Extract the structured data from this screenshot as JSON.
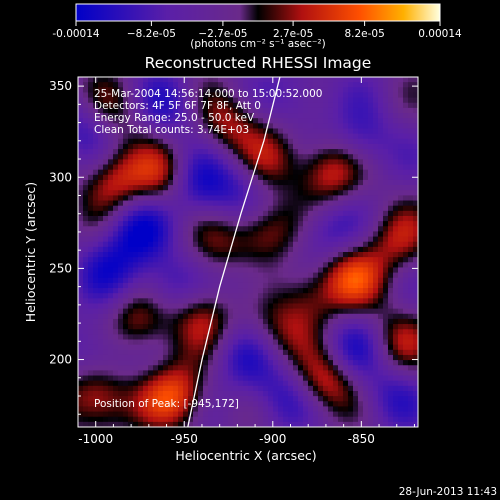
{
  "chart_data": {
    "type": "heatmap",
    "title": "Reconstructed RHESSI Image",
    "xlabel": "Heliocentric X (arcsec)",
    "ylabel": "Heliocentric Y (arcsec)",
    "xlim": [
      -1010,
      -818
    ],
    "ylim": [
      163,
      355
    ],
    "x_ticks": [
      -1000,
      -950,
      -900,
      -850
    ],
    "x_tick_labels": [
      "-1000",
      "-950",
      "-900",
      "-850"
    ],
    "y_ticks": [
      200,
      250,
      300,
      350
    ],
    "y_tick_labels": [
      "200",
      "250",
      "300",
      "350"
    ],
    "colorbar": {
      "range": [
        -0.00014,
        0.00014
      ],
      "ticks": [
        -0.00014,
        -8.2e-05,
        -2.7e-05,
        2.7e-05,
        8.2e-05,
        0.00014
      ],
      "tick_labels": [
        "-0.00014",
        "−8.2e-05",
        "−2.7e-05",
        "2.7e-05",
        "8.2e-05",
        "0.00014"
      ],
      "unit_label": "(photons cm⁻² s⁻¹ asec⁻²)",
      "colors": [
        "#0000c8",
        "#5a1fa8",
        "#6a2a8a",
        "#000000",
        "#b01010",
        "#ff5000",
        "#ffb000",
        "#ffffe0"
      ]
    },
    "info": [
      "25-Mar-2004 14:56:14.000 to 15:00:52.000",
      "Detectors: 4F 5F 6F 7F 8F, Att 0",
      "Energy Range: 25.0 - 50.0 keV",
      "Clean     Total counts: 3.74E+03"
    ],
    "peak_label": "Position of Peak: [-945,172]",
    "sources": [
      {
        "x": -955,
        "y": 180,
        "v": 1.0
      },
      {
        "x": -1000,
        "y": 178,
        "v": 0.95
      },
      {
        "x": -870,
        "y": 188,
        "v": 0.9
      },
      {
        "x": -990,
        "y": 298,
        "v": 0.75
      },
      {
        "x": -960,
        "y": 300,
        "v": 0.8
      },
      {
        "x": -868,
        "y": 303,
        "v": 0.85
      },
      {
        "x": -905,
        "y": 270,
        "v": 0.75
      },
      {
        "x": -855,
        "y": 245,
        "v": 0.8
      },
      {
        "x": -975,
        "y": 220,
        "v": 0.75
      },
      {
        "x": -940,
        "y": 225,
        "v": 0.65
      },
      {
        "x": -925,
        "y": 330,
        "v": 0.65
      },
      {
        "x": -990,
        "y": 338,
        "v": 0.55
      },
      {
        "x": -830,
        "y": 265,
        "v": 0.6
      },
      {
        "x": -830,
        "y": 210,
        "v": 0.55
      },
      {
        "x": -880,
        "y": 235,
        "v": 0.6
      },
      {
        "x": -900,
        "y": 215,
        "v": 0.55
      },
      {
        "x": -930,
        "y": 260,
        "v": 0.5
      },
      {
        "x": -900,
        "y": 310,
        "v": 0.55
      },
      {
        "x": -945,
        "y": 295,
        "v": -0.8
      },
      {
        "x": -975,
        "y": 270,
        "v": -0.7
      },
      {
        "x": -960,
        "y": 240,
        "v": -0.55
      },
      {
        "x": -990,
        "y": 250,
        "v": -0.6
      },
      {
        "x": -1005,
        "y": 330,
        "v": -0.55
      },
      {
        "x": -958,
        "y": 340,
        "v": -0.55
      },
      {
        "x": -870,
        "y": 270,
        "v": -0.55
      },
      {
        "x": -850,
        "y": 320,
        "v": -0.6
      },
      {
        "x": -855,
        "y": 205,
        "v": -0.6
      },
      {
        "x": -915,
        "y": 200,
        "v": -0.55
      },
      {
        "x": -1000,
        "y": 205,
        "v": -0.55
      },
      {
        "x": -920,
        "y": 295,
        "v": -0.5
      },
      {
        "x": -885,
        "y": 345,
        "v": -0.45
      },
      {
        "x": -835,
        "y": 180,
        "v": -0.5
      },
      {
        "x": -915,
        "y": 245,
        "v": -0.45
      },
      {
        "x": -895,
        "y": 180,
        "v": -0.55
      }
    ],
    "limb": [
      [
        -948,
        163
      ],
      [
        -940,
        200
      ],
      [
        -930,
        240
      ],
      [
        -918,
        280
      ],
      [
        -905,
        320
      ],
      [
        -896,
        355
      ]
    ]
  },
  "footer": {
    "timestamp": "28-Jun-2013 11:43"
  }
}
